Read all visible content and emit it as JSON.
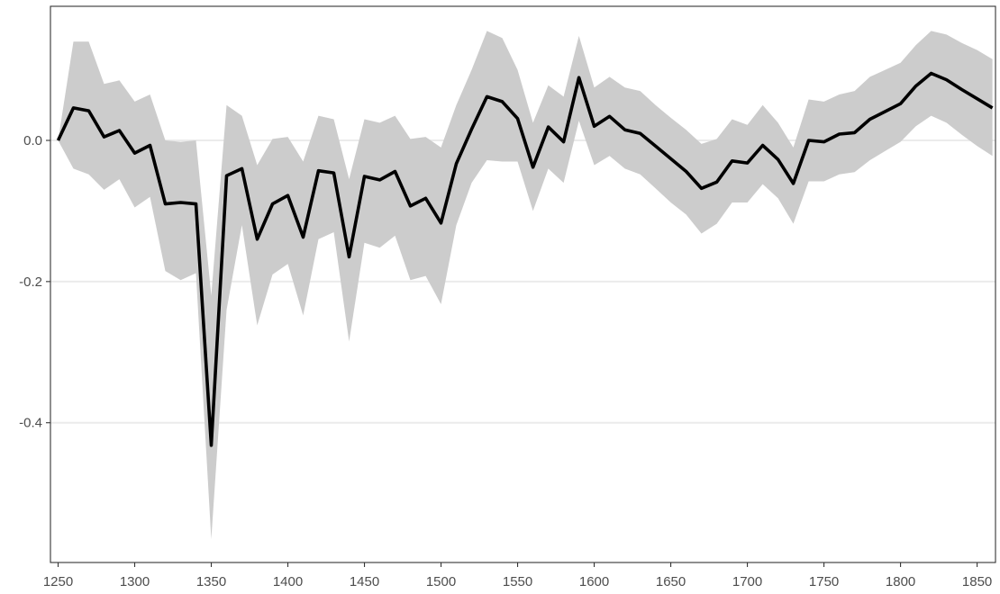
{
  "chart_data": {
    "type": "line",
    "title": "",
    "xlabel": "",
    "ylabel": "",
    "xlim": [
      1245,
      1862
    ],
    "ylim": [
      -0.598,
      0.19
    ],
    "x_ticks": [
      1250,
      1300,
      1350,
      1400,
      1450,
      1500,
      1550,
      1600,
      1650,
      1700,
      1750,
      1800,
      1850
    ],
    "y_ticks": [
      0.0,
      -0.2,
      -0.4
    ],
    "y_tick_labels": [
      "0.0",
      "-0.2",
      "-0.4"
    ],
    "grid": "horizontal major",
    "legend": "none",
    "colors": {
      "line": "#000000",
      "band": "#cccccc",
      "grid": "#ebebeb",
      "panel_border": "#333333"
    },
    "series": [
      {
        "x": [
          1250,
          1260,
          1270,
          1280,
          1290,
          1300,
          1310,
          1320,
          1330,
          1340,
          1350,
          1360,
          1370,
          1380,
          1390,
          1400,
          1410,
          1420,
          1430,
          1440,
          1450,
          1460,
          1470,
          1480,
          1490,
          1500,
          1510,
          1520,
          1530,
          1540,
          1550,
          1560,
          1570,
          1580,
          1590,
          1600,
          1610,
          1620,
          1630,
          1640,
          1650,
          1660,
          1670,
          1680,
          1690,
          1700,
          1710,
          1720,
          1730,
          1740,
          1750,
          1760,
          1770,
          1780,
          1790,
          1800,
          1810,
          1820,
          1830,
          1840,
          1850,
          1860
        ],
        "y": [
          0.0,
          0.046,
          0.042,
          0.005,
          0.014,
          -0.018,
          -0.007,
          -0.09,
          -0.088,
          -0.09,
          -0.432,
          -0.05,
          -0.04,
          -0.14,
          -0.09,
          -0.078,
          -0.137,
          -0.043,
          -0.046,
          -0.165,
          -0.051,
          -0.056,
          -0.044,
          -0.093,
          -0.082,
          -0.117,
          -0.033,
          0.016,
          0.062,
          0.055,
          0.031,
          -0.038,
          0.019,
          -0.002,
          0.089,
          0.02,
          0.034,
          0.015,
          0.01,
          -0.008,
          -0.026,
          -0.044,
          -0.068,
          -0.059,
          -0.029,
          -0.032,
          -0.007,
          -0.027,
          -0.061,
          0.0,
          -0.002,
          0.009,
          0.011,
          0.03,
          0.041,
          0.052,
          0.077,
          0.095,
          0.086,
          0.072,
          0.059,
          0.046
        ],
        "upper": [
          0.0,
          0.14,
          0.14,
          0.08,
          0.085,
          0.055,
          0.065,
          0.0,
          -0.002,
          0.0,
          -0.22,
          0.05,
          0.035,
          -0.035,
          0.002,
          0.005,
          -0.03,
          0.035,
          0.03,
          -0.055,
          0.03,
          0.025,
          0.035,
          0.002,
          0.005,
          -0.01,
          0.05,
          0.1,
          0.155,
          0.145,
          0.1,
          0.025,
          0.078,
          0.062,
          0.148,
          0.075,
          0.09,
          0.075,
          0.07,
          0.05,
          0.032,
          0.015,
          -0.005,
          0.002,
          0.03,
          0.022,
          0.05,
          0.025,
          -0.01,
          0.058,
          0.055,
          0.065,
          0.07,
          0.09,
          0.1,
          0.11,
          0.135,
          0.155,
          0.15,
          0.138,
          0.128,
          0.115
        ],
        "lower": [
          0.0,
          -0.04,
          -0.048,
          -0.07,
          -0.055,
          -0.095,
          -0.08,
          -0.185,
          -0.198,
          -0.188,
          -0.565,
          -0.24,
          -0.12,
          -0.262,
          -0.19,
          -0.175,
          -0.248,
          -0.14,
          -0.13,
          -0.285,
          -0.145,
          -0.152,
          -0.135,
          -0.198,
          -0.192,
          -0.232,
          -0.12,
          -0.06,
          -0.028,
          -0.03,
          -0.03,
          -0.1,
          -0.04,
          -0.06,
          0.028,
          -0.035,
          -0.022,
          -0.04,
          -0.048,
          -0.068,
          -0.088,
          -0.105,
          -0.132,
          -0.118,
          -0.088,
          -0.088,
          -0.062,
          -0.082,
          -0.118,
          -0.058,
          -0.058,
          -0.048,
          -0.045,
          -0.028,
          -0.015,
          -0.002,
          0.02,
          0.035,
          0.025,
          0.008,
          -0.008,
          -0.022
        ]
      }
    ]
  }
}
